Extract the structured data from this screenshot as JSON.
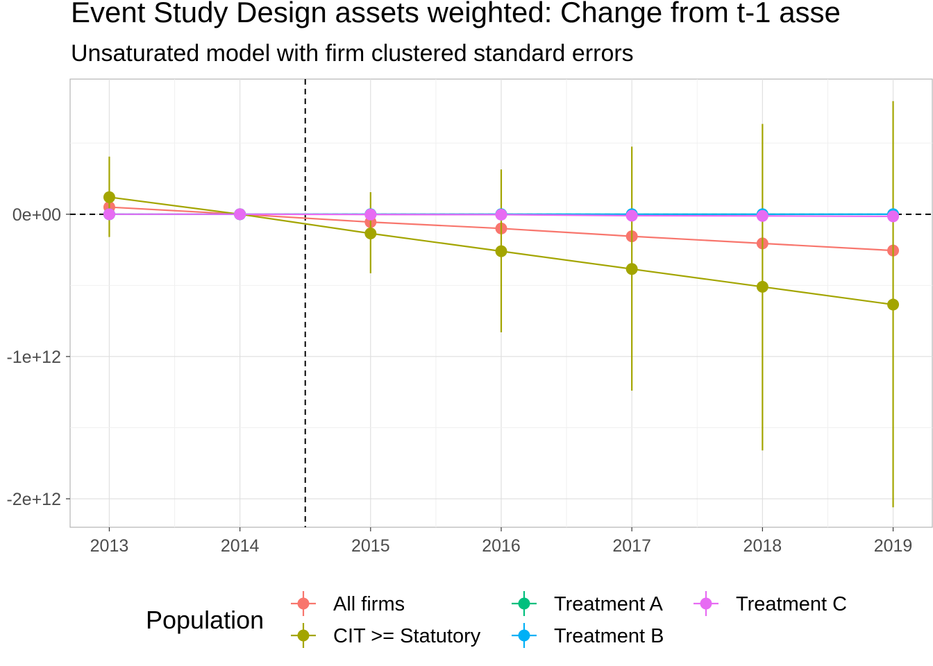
{
  "title": "Event Study Design assets weighted: Change from t-1 asse",
  "subtitle": "Unsaturated model with firm clustered standard errors",
  "chart_data": {
    "type": "line",
    "x": [
      2013,
      2014,
      2015,
      2016,
      2017,
      2018,
      2019
    ],
    "x_tick_labels": [
      "2013",
      "2014",
      "2015",
      "2016",
      "2017",
      "2018",
      "2019"
    ],
    "y_ticks": [
      0,
      -1000000000000,
      -2000000000000
    ],
    "y_tick_labels": [
      "0e+00",
      "-1e+12",
      "-2e+12"
    ],
    "xlim": [
      2012.7,
      2019.3
    ],
    "ylim": [
      -2200000000000,
      950000000000
    ],
    "xlabel": "",
    "ylabel": "",
    "grid": true,
    "reference_lines": {
      "horizontal_y": 0,
      "vertical_x": 2014.5,
      "style": "dashed"
    },
    "legend": {
      "title": "Population",
      "position": "bottom"
    },
    "series": [
      {
        "name": "All firms",
        "color": "#F8766D",
        "values": [
          50000000000,
          0,
          -55000000000,
          -100000000000,
          -155000000000,
          -205000000000,
          -255000000000
        ]
      },
      {
        "name": "CIT >= Statutory",
        "color": "#A3A500",
        "values": [
          120000000000,
          0,
          -135000000000,
          -260000000000,
          -385000000000,
          -510000000000,
          -635000000000
        ],
        "ci_low": [
          -160000000000,
          0,
          -415000000000,
          -830000000000,
          -1240000000000,
          -1660000000000,
          -2060000000000
        ],
        "ci_high": [
          405000000000,
          0,
          155000000000,
          315000000000,
          475000000000,
          635000000000,
          795000000000
        ]
      },
      {
        "name": "Treatment A",
        "color": "#00BF7D",
        "values": [
          0,
          0,
          0,
          0,
          0,
          0,
          0
        ]
      },
      {
        "name": "Treatment B",
        "color": "#00B0F6",
        "values": [
          0,
          0,
          0,
          0,
          0,
          0,
          0
        ]
      },
      {
        "name": "Treatment C",
        "color": "#E76BF3",
        "values": [
          0,
          0,
          -2000000000,
          -3000000000,
          -10000000000,
          -12000000000,
          -15000000000
        ]
      }
    ]
  }
}
